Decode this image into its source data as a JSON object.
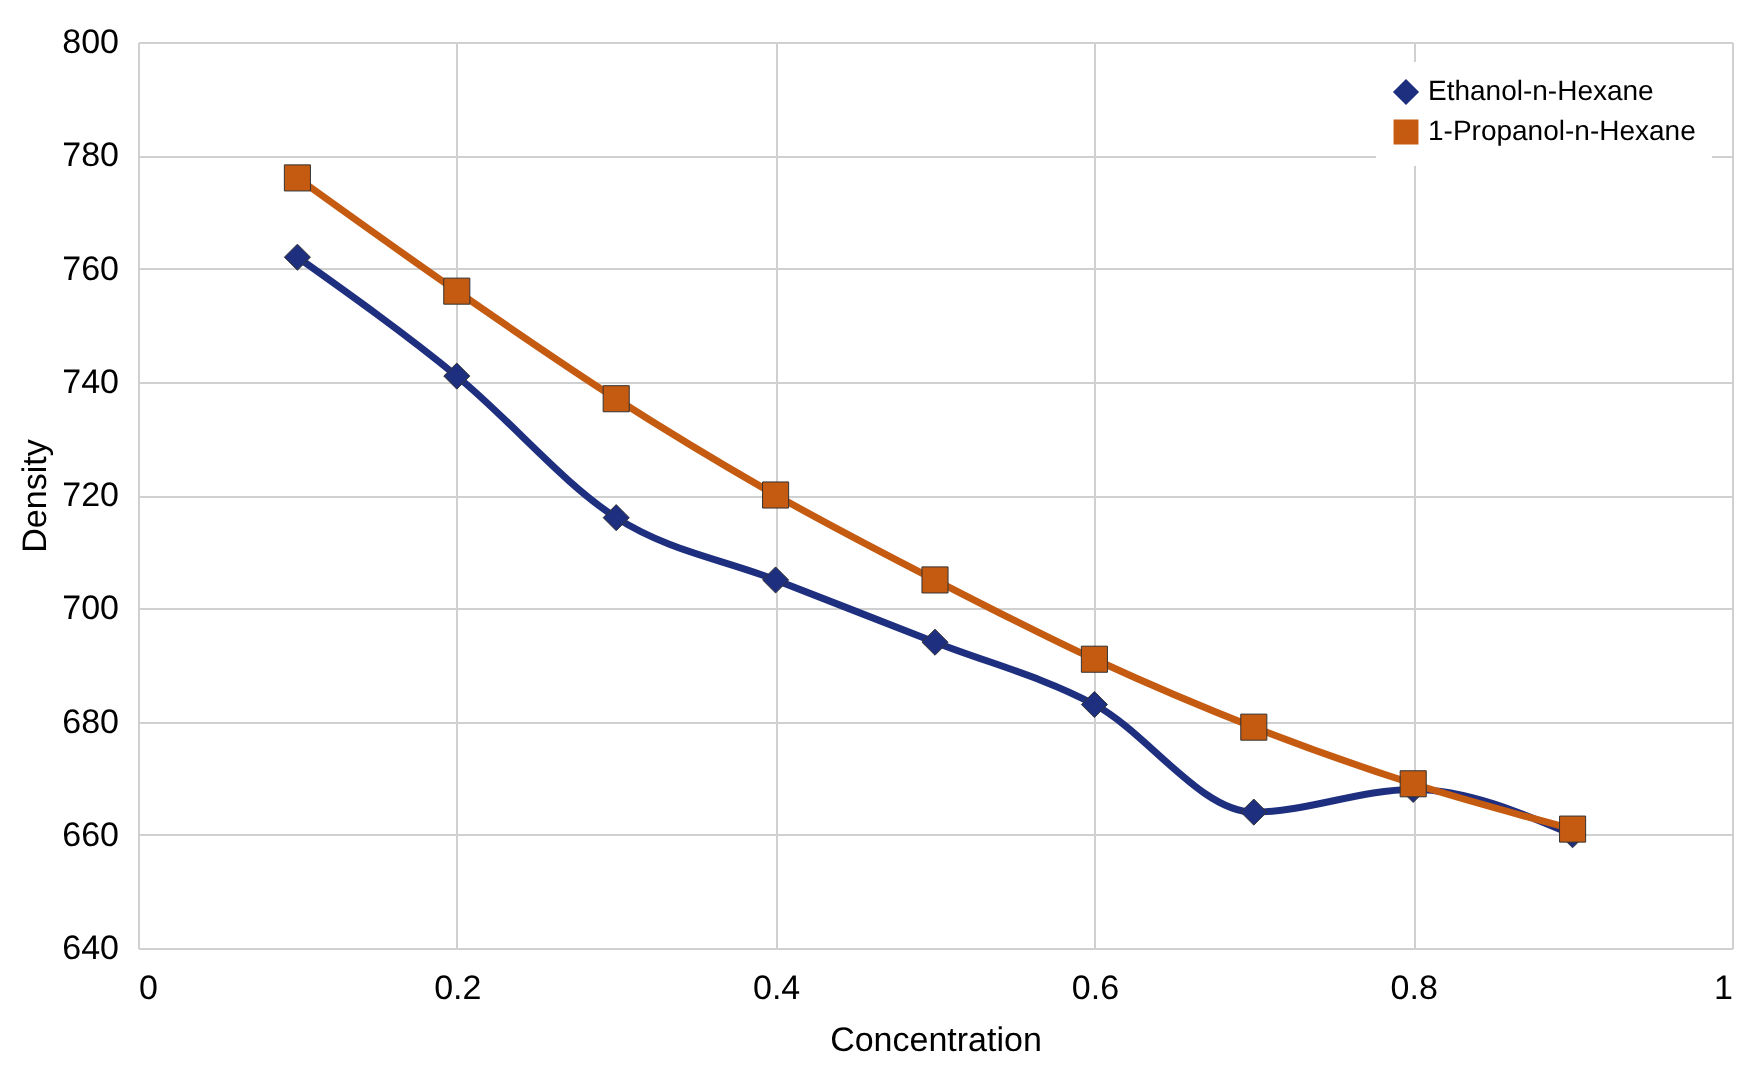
{
  "chart_data": {
    "type": "line",
    "xlabel": "Concentration",
    "ylabel": "Density",
    "x": [
      0.1,
      0.2,
      0.3,
      0.4,
      0.5,
      0.6,
      0.7,
      0.8,
      0.9
    ],
    "series": [
      {
        "name": "Ethanol-n-Hexane",
        "color": "#1f2f7f",
        "marker": "diamond",
        "values": [
          762,
          741,
          716,
          705,
          694,
          683,
          664,
          668,
          660
        ]
      },
      {
        "name": "1-Propanol-n-Hexane",
        "color": "#c55a11",
        "marker": "square",
        "values": [
          776,
          756,
          737,
          720,
          705,
          691,
          679,
          669,
          661
        ]
      }
    ],
    "xlim": [
      0,
      1
    ],
    "xticks": [
      0,
      0.2,
      0.4,
      0.6,
      0.8,
      1
    ],
    "ylim": [
      640,
      800
    ],
    "yticks": [
      640,
      660,
      680,
      700,
      720,
      740,
      760,
      780,
      800
    ],
    "grid": true,
    "legend": "top right",
    "line_style": "solid"
  }
}
